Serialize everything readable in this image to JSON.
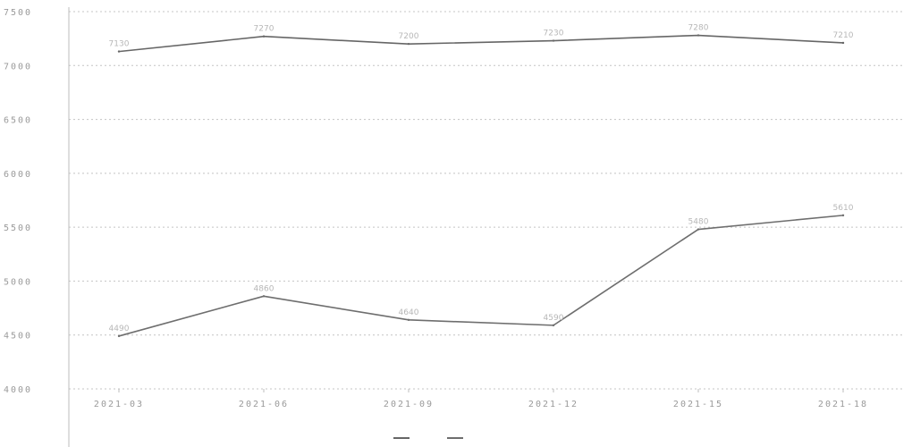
{
  "chart_data": {
    "type": "line",
    "title": "",
    "xlabel": "",
    "ylabel": "",
    "categories": [
      "2021-03",
      "2021-06",
      "2021-09",
      "2021-12",
      "2021-15",
      "2021-18"
    ],
    "ylim": [
      4000,
      7500
    ],
    "yticks": [
      4000,
      4500,
      5000,
      5500,
      6000,
      6500,
      7000,
      7500
    ],
    "grid": true,
    "legend_position": "bottom-center",
    "series": [
      {
        "name": "",
        "color": "#666666",
        "values": [
          7130,
          7270,
          7200,
          7230,
          7280,
          7210
        ]
      },
      {
        "name": "",
        "color": "#6e6e6e",
        "values": [
          4490,
          4860,
          4640,
          4590,
          5480,
          5610
        ]
      }
    ]
  }
}
